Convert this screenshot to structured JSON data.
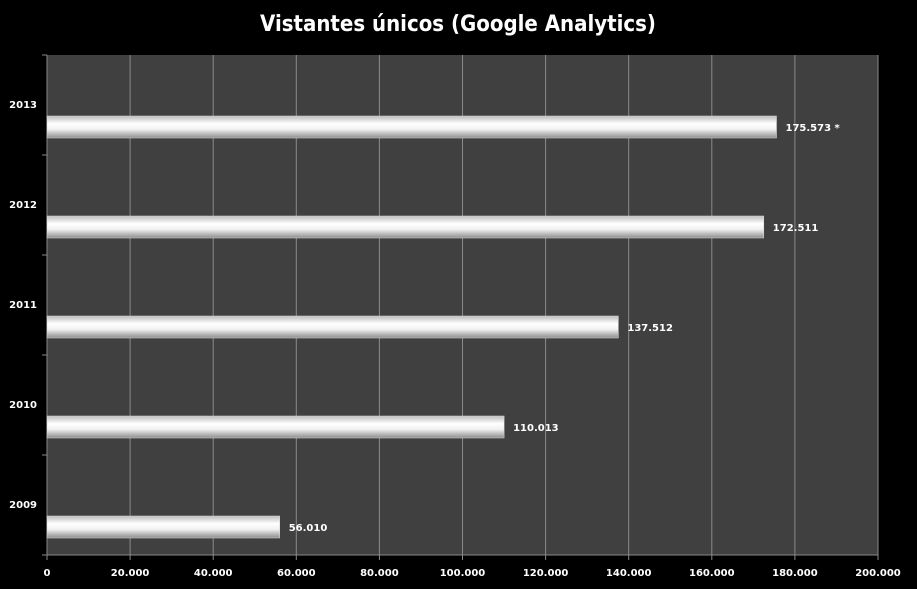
{
  "chart_data": {
    "type": "barh",
    "title": "Vistantes únicos (Google Analytics)",
    "categories": [
      "2009",
      "2010",
      "2011",
      "2012",
      "2013"
    ],
    "values": [
      56010,
      110013,
      137512,
      172511,
      175573
    ],
    "value_labels": [
      "56.010",
      "110.013",
      "137.512",
      "172.511",
      "175.573 *"
    ],
    "color": "#ffffff",
    "xlim": [
      0,
      200000
    ],
    "xticks": [
      0,
      {
        "value": 20000,
        "label": "20.000"
      },
      {
        "value": 40000,
        "label": "40.000"
      },
      {
        "value": 60000,
        "label": "60.000"
      },
      {
        "value": 80000,
        "label": "80.000"
      },
      {
        "value": 100000,
        "label": "100.000"
      },
      {
        "value": 120000,
        "label": "120.000"
      },
      {
        "value": 140000,
        "label": "140.000"
      },
      {
        "value": 160000,
        "label": "160.000"
      },
      {
        "value": 180000,
        "label": "180.000"
      },
      {
        "value": 200000,
        "label": "200.000"
      }
    ],
    "grid": true
  }
}
